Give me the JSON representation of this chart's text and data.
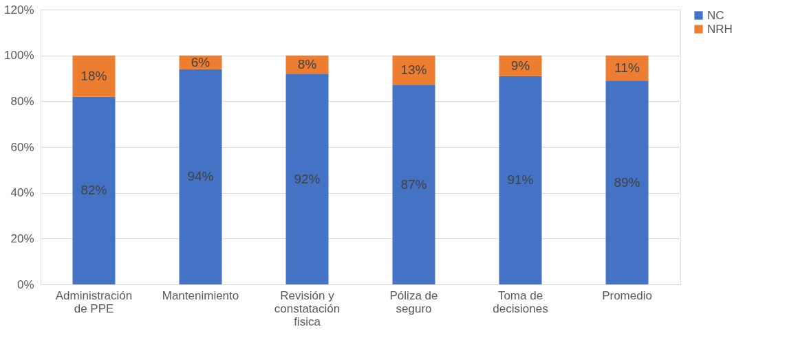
{
  "chart_data": {
    "type": "bar",
    "stacked": true,
    "categories": [
      "Administración\nde PPE",
      "Mantenimiento",
      "Revisión y\nconstatación\nfisica",
      "Póliza de\nseguro",
      "Toma de\ndecisiones",
      "Promedio"
    ],
    "series": [
      {
        "name": "NC",
        "color": "#4472c4",
        "values": [
          82,
          94,
          92,
          87,
          91,
          89
        ],
        "value_labels": [
          "82%",
          "94%",
          "92%",
          "87%",
          "91%",
          "89%"
        ]
      },
      {
        "name": "NRH",
        "color": "#ed7d31",
        "values": [
          18,
          6,
          8,
          13,
          9,
          11
        ],
        "value_labels": [
          "18%",
          "6%",
          "8%",
          "13%",
          "9%",
          "11%"
        ]
      }
    ],
    "ylim": [
      0,
      120
    ],
    "yticks": [
      {
        "value": 0,
        "label": "0%"
      },
      {
        "value": 20,
        "label": "20%"
      },
      {
        "value": 40,
        "label": "40%"
      },
      {
        "value": 60,
        "label": "60%"
      },
      {
        "value": 80,
        "label": "80%"
      },
      {
        "value": 100,
        "label": "100%"
      },
      {
        "value": 120,
        "label": "120%"
      }
    ],
    "grid": "y",
    "legend": "right"
  }
}
